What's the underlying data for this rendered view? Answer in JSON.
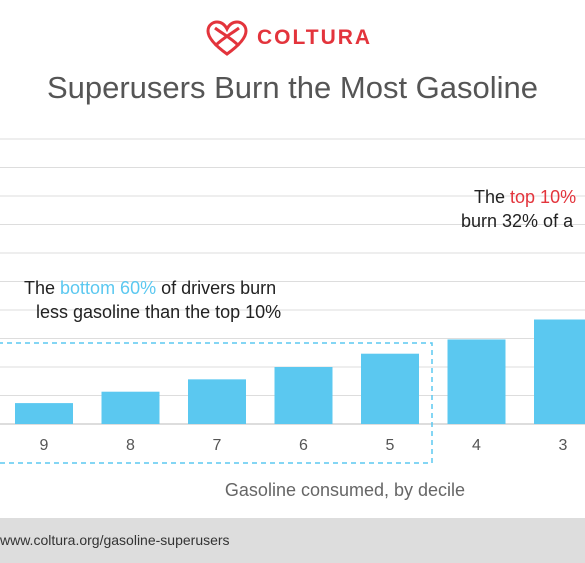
{
  "brand": {
    "name": "COLTURA",
    "color": "#e3343c"
  },
  "chart_data": {
    "type": "bar",
    "title": "Superusers Burn the Most Gasoline",
    "xlabel": "Gasoline consumed, by decile",
    "ylabel": "",
    "categories": [
      "9",
      "8",
      "7",
      "6",
      "5",
      "4",
      "3"
    ],
    "values": [
      2.2,
      3.4,
      4.7,
      6.0,
      7.4,
      8.9,
      11.0
    ],
    "ylim": [
      0,
      30
    ],
    "grid": true,
    "bar_color": "#5bc8f0",
    "annotations": [
      {
        "name": "bottom-60",
        "before": "The ",
        "highlight": "bottom 60%",
        "after": " of drivers burn",
        "line2": "less gasoline than the top 10%",
        "highlight_color": "#5bc8f0"
      },
      {
        "name": "top-10",
        "before": "The ",
        "highlight": "top 10%",
        "after": "",
        "line2": "burn 32% of a",
        "highlight_color": "#e3343c"
      }
    ]
  },
  "footer": {
    "url": "www.coltura.org/gasoline-superusers"
  }
}
